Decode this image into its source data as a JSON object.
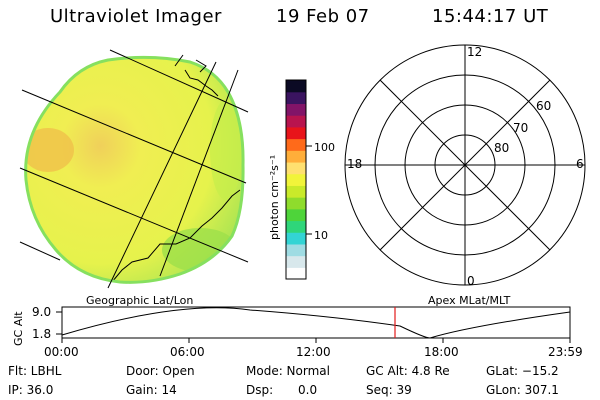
{
  "header": {
    "instrument": "Ultraviolet Imager",
    "date": "19 Feb 07",
    "time": "15:44:17 UT"
  },
  "colorbar": {
    "unit_label": "photon cm⁻²s⁻¹",
    "tick_labels": [
      "100",
      "10"
    ],
    "colors": [
      "#fefefe",
      "#d8e8ec",
      "#9fdce3",
      "#33d4d4",
      "#2fd67a",
      "#4ed43a",
      "#8fdc2c",
      "#c9ea2a",
      "#f1f43a",
      "#ffe070",
      "#ffae3a",
      "#ff6a1a",
      "#e8141a",
      "#b8144e",
      "#821468",
      "#3a1460",
      "#0b0a24"
    ]
  },
  "polar_plot": {
    "mlt_labels": {
      "top": "12",
      "left": "18",
      "right": "6",
      "bottom": "0"
    },
    "lat_labels": [
      "60",
      "70",
      "80"
    ]
  },
  "imager": {
    "panel_label": "Geographic Lat/Lon",
    "colors": {
      "fill": "#e7f24c",
      "edge": "#86e05f",
      "hot": "#f2c14a",
      "green": "#9ee04a"
    }
  },
  "timeline": {
    "left_label": "Geographic Lat/Lon",
    "right_label": "Apex MLat/MLT",
    "axis_label": "GC Alt",
    "y_ticks": [
      "9.0",
      "1.8"
    ],
    "x_ticks": [
      "00:00",
      "06:00",
      "12:00",
      "18:00",
      "23:59"
    ],
    "marker_color": "#e31a1c"
  },
  "info": {
    "flt": "Flt: LBHL",
    "ip": "IP: 36.0",
    "door": "Door: Open",
    "gain": "Gain: 14",
    "mode": "Mode: Normal",
    "dsp": "Dsp:",
    "dsp_val": "0.0",
    "gc_alt": "GC Alt: 4.8 Re",
    "seq": "Seq: 39",
    "glat": "GLat: −15.2",
    "glon": "GLon: 307.1"
  }
}
